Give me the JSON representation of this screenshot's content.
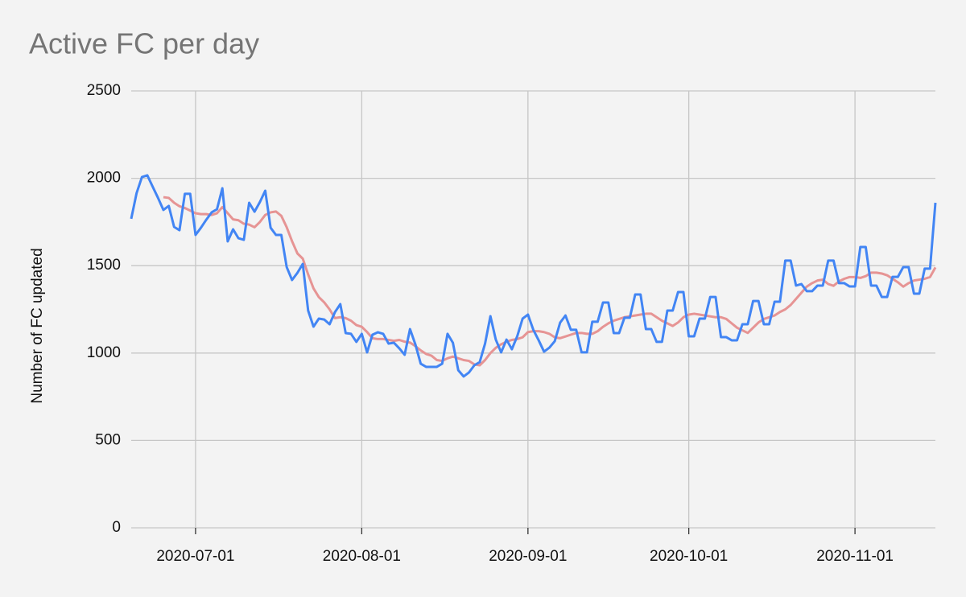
{
  "chart_data": {
    "type": "line",
    "title": "Active FC per day",
    "y_label": "Number of FC updated",
    "x": [
      "2020-06-19",
      "2020-06-20",
      "2020-06-21",
      "2020-06-22",
      "2020-06-23",
      "2020-06-24",
      "2020-06-25",
      "2020-06-26",
      "2020-06-27",
      "2020-06-28",
      "2020-06-29",
      "2020-06-30",
      "2020-07-01",
      "2020-07-02",
      "2020-07-03",
      "2020-07-04",
      "2020-07-05",
      "2020-07-06",
      "2020-07-07",
      "2020-07-08",
      "2020-07-09",
      "2020-07-10",
      "2020-07-11",
      "2020-07-12",
      "2020-07-13",
      "2020-07-14",
      "2020-07-15",
      "2020-07-16",
      "2020-07-17",
      "2020-07-18",
      "2020-07-19",
      "2020-07-20",
      "2020-07-21",
      "2020-07-22",
      "2020-07-23",
      "2020-07-24",
      "2020-07-25",
      "2020-07-26",
      "2020-07-27",
      "2020-07-28",
      "2020-07-29",
      "2020-07-30",
      "2020-07-31",
      "2020-08-01",
      "2020-08-02",
      "2020-08-03",
      "2020-08-04",
      "2020-08-05",
      "2020-08-06",
      "2020-08-07",
      "2020-08-08",
      "2020-08-09",
      "2020-08-10",
      "2020-08-11",
      "2020-08-12",
      "2020-08-13",
      "2020-08-14",
      "2020-08-15",
      "2020-08-16",
      "2020-08-17",
      "2020-08-18",
      "2020-08-19",
      "2020-08-20",
      "2020-08-21",
      "2020-08-22",
      "2020-08-23",
      "2020-08-24",
      "2020-08-25",
      "2020-08-26",
      "2020-08-27",
      "2020-08-28",
      "2020-08-29",
      "2020-08-30",
      "2020-08-31",
      "2020-09-01",
      "2020-09-02",
      "2020-09-03",
      "2020-09-04",
      "2020-09-05",
      "2020-09-06",
      "2020-09-07",
      "2020-09-08",
      "2020-09-09",
      "2020-09-10",
      "2020-09-11",
      "2020-09-12",
      "2020-09-13",
      "2020-09-14",
      "2020-09-15",
      "2020-09-16",
      "2020-09-17",
      "2020-09-18",
      "2020-09-19",
      "2020-09-20",
      "2020-09-21",
      "2020-09-22",
      "2020-09-23",
      "2020-09-24",
      "2020-09-25",
      "2020-09-26",
      "2020-09-27",
      "2020-09-28",
      "2020-09-29",
      "2020-09-30",
      "2020-10-01",
      "2020-10-02",
      "2020-10-03",
      "2020-10-04",
      "2020-10-05",
      "2020-10-06",
      "2020-10-07",
      "2020-10-08",
      "2020-10-09",
      "2020-10-10",
      "2020-10-11",
      "2020-10-12",
      "2020-10-13",
      "2020-10-14",
      "2020-10-15",
      "2020-10-16",
      "2020-10-17",
      "2020-10-18",
      "2020-10-19",
      "2020-10-20",
      "2020-10-21",
      "2020-10-22",
      "2020-10-23",
      "2020-10-24",
      "2020-10-25",
      "2020-10-26",
      "2020-10-27",
      "2020-10-28",
      "2020-10-29",
      "2020-10-30",
      "2020-10-31",
      "2020-11-01",
      "2020-11-02",
      "2020-11-03",
      "2020-11-04",
      "2020-11-05",
      "2020-11-06",
      "2020-11-07",
      "2020-11-08",
      "2020-11-09",
      "2020-11-10",
      "2020-11-11",
      "2020-11-12",
      "2020-11-13",
      "2020-11-14",
      "2020-11-15",
      "2020-11-16"
    ],
    "series": [
      {
        "color": "#4285f4",
        "values": [
          1768,
          1915,
          2007,
          2017,
          1952,
          1888,
          1819,
          1842,
          1722,
          1703,
          1911,
          1911,
          1676,
          1717,
          1763,
          1805,
          1823,
          1943,
          1639,
          1708,
          1657,
          1648,
          1860,
          1809,
          1864,
          1929,
          1717,
          1676,
          1676,
          1492,
          1418,
          1459,
          1510,
          1243,
          1151,
          1197,
          1192,
          1165,
          1234,
          1280,
          1114,
          1110,
          1064,
          1110,
          1004,
          1105,
          1119,
          1110,
          1054,
          1059,
          1027,
          990,
          1137,
          1050,
          939,
          921,
          921,
          921,
          939,
          1110,
          1059,
          902,
          866,
          889,
          930,
          948,
          1054,
          1211,
          1077,
          1004,
          1077,
          1022,
          1096,
          1197,
          1220,
          1133,
          1073,
          1008,
          1031,
          1068,
          1174,
          1215,
          1133,
          1133,
          1004,
          1004,
          1179,
          1179,
          1289,
          1289,
          1114,
          1114,
          1202,
          1202,
          1335,
          1335,
          1137,
          1137,
          1064,
          1064,
          1243,
          1243,
          1349,
          1349,
          1096,
          1096,
          1197,
          1197,
          1321,
          1321,
          1091,
          1091,
          1073,
          1073,
          1165,
          1165,
          1298,
          1298,
          1165,
          1165,
          1294,
          1294,
          1529,
          1529,
          1386,
          1395,
          1354,
          1354,
          1386,
          1386,
          1529,
          1529,
          1400,
          1400,
          1381,
          1381,
          1607,
          1607,
          1386,
          1386,
          1321,
          1321,
          1436,
          1436,
          1492,
          1492,
          1340,
          1340,
          1483,
          1483,
          1860
        ]
      },
      {
        "color": "#e69494",
        "values": [
          null,
          null,
          null,
          null,
          null,
          null,
          1892,
          1888,
          1860,
          1840,
          1830,
          1815,
          1800,
          1795,
          1795,
          1790,
          1800,
          1835,
          1800,
          1765,
          1760,
          1740,
          1735,
          1720,
          1750,
          1790,
          1805,
          1810,
          1785,
          1720,
          1640,
          1570,
          1540,
          1450,
          1370,
          1320,
          1290,
          1250,
          1200,
          1205,
          1200,
          1185,
          1160,
          1150,
          1120,
          1085,
          1080,
          1080,
          1075,
          1070,
          1075,
          1065,
          1060,
          1040,
          1015,
          995,
          985,
          960,
          955,
          970,
          980,
          970,
          960,
          955,
          935,
          930,
          960,
          1000,
          1030,
          1050,
          1065,
          1075,
          1080,
          1090,
          1120,
          1125,
          1125,
          1120,
          1110,
          1090,
          1085,
          1095,
          1105,
          1115,
          1115,
          1110,
          1110,
          1125,
          1150,
          1170,
          1185,
          1195,
          1205,
          1210,
          1215,
          1220,
          1225,
          1225,
          1205,
          1185,
          1170,
          1155,
          1175,
          1205,
          1220,
          1225,
          1220,
          1215,
          1210,
          1205,
          1205,
          1195,
          1170,
          1145,
          1130,
          1115,
          1145,
          1175,
          1195,
          1205,
          1215,
          1235,
          1250,
          1275,
          1310,
          1345,
          1380,
          1400,
          1415,
          1420,
          1395,
          1385,
          1410,
          1425,
          1435,
          1435,
          1430,
          1440,
          1460,
          1460,
          1455,
          1445,
          1425,
          1405,
          1380,
          1400,
          1415,
          1420,
          1425,
          1435,
          1490
        ]
      }
    ],
    "xlim": [
      "2020-06-19",
      "2020-11-16"
    ],
    "xticks": [
      "2020-07-01",
      "2020-08-01",
      "2020-09-01",
      "2020-10-01",
      "2020-11-01"
    ],
    "ylim": [
      0,
      2500
    ],
    "yticks": [
      0,
      500,
      1000,
      1500,
      2000,
      2500
    ],
    "grid": true
  }
}
